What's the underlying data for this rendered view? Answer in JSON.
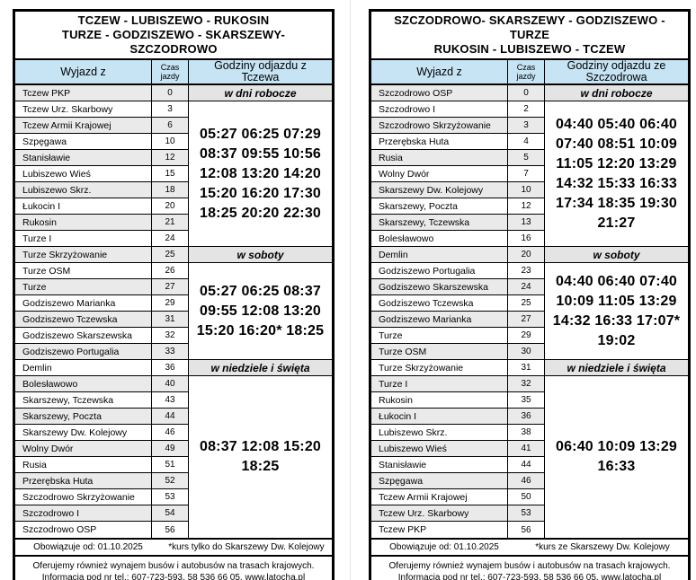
{
  "colors": {
    "header_blue": "#c6e4f4",
    "row_stripe_gray": "#eaeaea",
    "band_gray": "#e4e4e4",
    "border_black": "#000000",
    "page_divider": "#e3e3e3"
  },
  "boards": {
    "left": {
      "title_line1": "TCZEW - LUBISZEWO - RUKOSIN",
      "title_line2": "TURZE - GODZISZEWO - SKARSZEWY- SZCZODROWO",
      "col_headers": {
        "from": "Wyjazd z",
        "duration_line1": "Czas",
        "duration_line2": "jazdy",
        "departures": "Godziny odjazdu z Tczewa"
      },
      "stops": [
        {
          "name": "Tczew PKP",
          "minutes": "0"
        },
        {
          "name": "Tczew Urz. Skarbowy",
          "minutes": "3"
        },
        {
          "name": "Tczew Armii Krajowej",
          "minutes": "6"
        },
        {
          "name": "Szpęgawa",
          "minutes": "10"
        },
        {
          "name": "Stanisławie",
          "minutes": "12"
        },
        {
          "name": "Lubiszewo Wieś",
          "minutes": "15"
        },
        {
          "name": "Lubiszewo Skrz.",
          "minutes": "18"
        },
        {
          "name": "Łukocin I",
          "minutes": "20"
        },
        {
          "name": "Rukosin",
          "minutes": "21"
        },
        {
          "name": "Turze I",
          "minutes": "24"
        },
        {
          "name": "Turze Skrzyżowanie",
          "minutes": "25"
        },
        {
          "name": "Turze OSM",
          "minutes": "26"
        },
        {
          "name": "Turze",
          "minutes": "27"
        },
        {
          "name": "Godziszewo Marianka",
          "minutes": "29"
        },
        {
          "name": "Godziszewo Tczewska",
          "minutes": "31"
        },
        {
          "name": "Godziszewo Skarszewska",
          "minutes": "32"
        },
        {
          "name": "Godziszewo Portugalia",
          "minutes": "33"
        },
        {
          "name": "Demlin",
          "minutes": "36"
        },
        {
          "name": "Bolesławowo",
          "minutes": "40"
        },
        {
          "name": "Skarszewy, Tczewska",
          "minutes": "43"
        },
        {
          "name": "Skarszewy, Poczta",
          "minutes": "44"
        },
        {
          "name": "Skarszewy Dw. Kolejowy",
          "minutes": "46"
        },
        {
          "name": "Wolny Dwór",
          "minutes": "49"
        },
        {
          "name": "Rusia",
          "minutes": "51"
        },
        {
          "name": "Przerębska Huta",
          "minutes": "52"
        },
        {
          "name": "Szczodrowo Skrzyżowanie",
          "minutes": "53"
        },
        {
          "name": "Szczodrowo I",
          "minutes": "54"
        },
        {
          "name": "Szczodrowo OSP",
          "minutes": "56"
        }
      ],
      "sections": [
        {
          "label": "w dni robocze",
          "rows_span": 9,
          "time_lines": [
            "05:27 06:25 07:29",
            "08:37 09:55 10:56",
            "12:08 13:20 14:20",
            "15:20 16:20 17:30",
            "18:25 20:20 22:30"
          ]
        },
        {
          "label": "w soboty",
          "rows_span": 6,
          "time_lines": [
            "05:27 06:25 08:37",
            "09:55 12:08 13:20",
            "15:20 16:20* 18:25"
          ]
        },
        {
          "label": "w niedziele i święta",
          "rows_span": 10,
          "time_lines": [
            "08:37 12:08 15:20",
            "18:25"
          ]
        }
      ],
      "footer": {
        "valid_from": "Obowiązuje od: 01.10.2025",
        "note": "*kurs tylko do Skarszewy Dw. Kolejowy"
      },
      "promo_line1": "Oferujemy również wynajem busów i autobusów na trasach krajowych.",
      "promo_line2": "Informacja pod nr tel.: 607-723-593, 58 536 66 05, www.latocha.pl"
    },
    "right": {
      "title_line1": "SZCZODROWO- SKARSZEWY - GODZISZEWO - TURZE",
      "title_line2": "RUKOSIN - LUBISZEWO - TCZEW",
      "col_headers": {
        "from": "Wyjazd z",
        "duration_line1": "Czas",
        "duration_line2": "jazdy",
        "departures": "Godziny odjazdu ze Szczodrowa"
      },
      "stops": [
        {
          "name": "Szczodrowo OSP",
          "minutes": "0"
        },
        {
          "name": "Szczodrowo I",
          "minutes": "2"
        },
        {
          "name": "Szczodrowo Skrzyżowanie",
          "minutes": "3"
        },
        {
          "name": "Przerębska Huta",
          "minutes": "4"
        },
        {
          "name": "Rusia",
          "minutes": "5"
        },
        {
          "name": "Wolny Dwór",
          "minutes": "7"
        },
        {
          "name": "Skarszewy Dw. Kolejowy",
          "minutes": "10"
        },
        {
          "name": "Skarszewy, Poczta",
          "minutes": "12"
        },
        {
          "name": "Skarszewy, Tczewska",
          "minutes": "13"
        },
        {
          "name": "Bolesławowo",
          "minutes": "16"
        },
        {
          "name": "Demlin",
          "minutes": "20"
        },
        {
          "name": "Godziszewo Portugalia",
          "minutes": "23"
        },
        {
          "name": "Godziszewo Skarszewska",
          "minutes": "24"
        },
        {
          "name": "Godziszewo Tczewska",
          "minutes": "25"
        },
        {
          "name": "Godziszewo Marianka",
          "minutes": "27"
        },
        {
          "name": "Turze",
          "minutes": "29"
        },
        {
          "name": "Turze OSM",
          "minutes": "30"
        },
        {
          "name": "Turze Skrzyżowanie",
          "minutes": "31"
        },
        {
          "name": "Turze I",
          "minutes": "32"
        },
        {
          "name": "Rukosin",
          "minutes": "35"
        },
        {
          "name": "Łukocin I",
          "minutes": "36"
        },
        {
          "name": "Lubiszewo Skrz.",
          "minutes": "38"
        },
        {
          "name": "Lubiszewo Wieś",
          "minutes": "41"
        },
        {
          "name": "Stanisławie",
          "minutes": "44"
        },
        {
          "name": "Szpęgawa",
          "minutes": "46"
        },
        {
          "name": "Tczew Armii Krajowej",
          "minutes": "50"
        },
        {
          "name": "Tczew Urz. Skarbowy",
          "minutes": "53"
        },
        {
          "name": "Tczew PKP",
          "minutes": "56"
        }
      ],
      "sections": [
        {
          "label": "w dni robocze",
          "rows_span": 9,
          "time_lines": [
            "04:40 05:40 06:40",
            "07:40 08:51 10:09",
            "11:05 12:20 13:29",
            "14:32 15:33 16:33",
            "17:34 18:35 19:30",
            "21:27"
          ]
        },
        {
          "label": "w soboty",
          "rows_span": 6,
          "time_lines": [
            "04:40 06:40 07:40",
            "10:09 11:05 13:29",
            "14:32 16:33 17:07*",
            "19:02"
          ]
        },
        {
          "label": "w niedziele i święta",
          "rows_span": 10,
          "time_lines": [
            "06:40 10:09 13:29",
            "16:33"
          ]
        }
      ],
      "footer": {
        "valid_from": "Obowiązuje od: 01.10.2025",
        "note": "*kurs ze Skarszewy Dw. Kolejowy"
      },
      "promo_line1": "Oferujemy również wynajem busów i autobusów na trasach krajowych.",
      "promo_line2": "Informacja pod nr tel.: 607-723-593, 58 536 66 05, www.latocha.pl"
    }
  }
}
